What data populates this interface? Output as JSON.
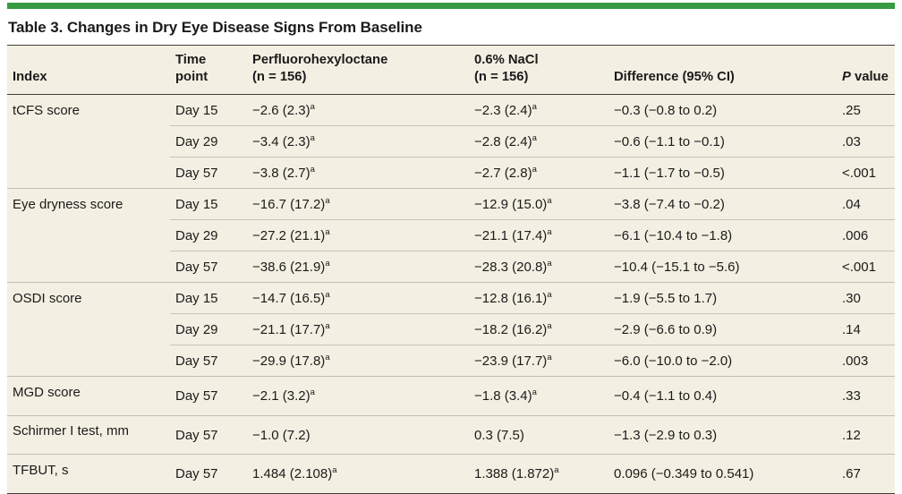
{
  "page": {
    "accent_color": "#379b41",
    "panel_background": "#f3efe2",
    "rule_dark": "#3d3d3d",
    "rule_light": "#c8c5b7",
    "text_color": "#1b1b1b"
  },
  "table": {
    "title": "Table 3. Changes in Dry Eye Disease Signs From Baseline",
    "header": {
      "index": "Index",
      "time_point": "Time\npoint",
      "drug": "Perfluorohexyloctane\n(n = 156)",
      "nacl": "0.6% NaCl\n(n = 156)",
      "difference": "Difference (95% CI)",
      "p_value_italic": "P",
      "p_value_rest": " value"
    },
    "footnote_marker": "a",
    "groups": [
      {
        "index": "tCFS score",
        "rows": [
          {
            "time": "Day 15",
            "drug": {
              "text": "−2.6 (2.3)",
              "sup": "a"
            },
            "nacl": {
              "text": "−2.3 (2.4)",
              "sup": "a"
            },
            "difference": "−0.3 (−0.8 to 0.2)",
            "p": ".25"
          },
          {
            "time": "Day 29",
            "drug": {
              "text": "−3.4 (2.3)",
              "sup": "a"
            },
            "nacl": {
              "text": "−2.8 (2.4)",
              "sup": "a"
            },
            "difference": "−0.6 (−1.1 to −0.1)",
            "p": ".03"
          },
          {
            "time": "Day 57",
            "drug": {
              "text": "−3.8 (2.7)",
              "sup": "a"
            },
            "nacl": {
              "text": "−2.7 (2.8)",
              "sup": "a"
            },
            "difference": "−1.1 (−1.7 to −0.5)",
            "p": "<.001"
          }
        ]
      },
      {
        "index": "Eye dryness score",
        "rows": [
          {
            "time": "Day 15",
            "drug": {
              "text": "−16.7 (17.2)",
              "sup": "a"
            },
            "nacl": {
              "text": "−12.9 (15.0)",
              "sup": "a"
            },
            "difference": "−3.8 (−7.4 to −0.2)",
            "p": ".04"
          },
          {
            "time": "Day 29",
            "drug": {
              "text": "−27.2 (21.1)",
              "sup": "a"
            },
            "nacl": {
              "text": "−21.1 (17.4)",
              "sup": "a"
            },
            "difference": "−6.1 (−10.4 to −1.8)",
            "p": ".006"
          },
          {
            "time": "Day 57",
            "drug": {
              "text": "−38.6 (21.9)",
              "sup": "a"
            },
            "nacl": {
              "text": "−28.3 (20.8)",
              "sup": "a"
            },
            "difference": "−10.4 (−15.1 to −5.6)",
            "p": "<.001"
          }
        ]
      },
      {
        "index": "OSDI score",
        "rows": [
          {
            "time": "Day 15",
            "drug": {
              "text": "−14.7 (16.5)",
              "sup": "a"
            },
            "nacl": {
              "text": "−12.8 (16.1)",
              "sup": "a"
            },
            "difference": "−1.9 (−5.5 to 1.7)",
            "p": ".30"
          },
          {
            "time": "Day 29",
            "drug": {
              "text": "−21.1 (17.7)",
              "sup": "a"
            },
            "nacl": {
              "text": "−18.2 (16.2)",
              "sup": "a"
            },
            "difference": "−2.9 (−6.6 to 0.9)",
            "p": ".14"
          },
          {
            "time": "Day 57",
            "drug": {
              "text": "−29.9 (17.8)",
              "sup": "a"
            },
            "nacl": {
              "text": "−23.9 (17.7)",
              "sup": "a"
            },
            "difference": "−6.0 (−10.0 to −2.0)",
            "p": ".003"
          }
        ]
      },
      {
        "index": "MGD score",
        "rows": [
          {
            "time": "Day 57",
            "drug": {
              "text": "−2.1 (3.2)",
              "sup": "a"
            },
            "nacl": {
              "text": "−1.8 (3.4)",
              "sup": "a"
            },
            "difference": "−0.4 (−1.1 to 0.4)",
            "p": ".33"
          }
        ]
      },
      {
        "index": "Schirmer I test, mm",
        "rows": [
          {
            "time": "Day 57",
            "drug": {
              "text": "−1.0 (7.2)"
            },
            "nacl": {
              "text": "0.3 (7.5)"
            },
            "difference": "−1.3 (−2.9 to 0.3)",
            "p": ".12"
          }
        ]
      },
      {
        "index": "TFBUT, s",
        "rows": [
          {
            "time": "Day 57",
            "drug": {
              "text": "1.484 (2.108)",
              "sup": "a"
            },
            "nacl": {
              "text": "1.388 (1.872)",
              "sup": "a"
            },
            "difference": "0.096 (−0.349 to 0.541)",
            "p": ".67"
          }
        ]
      }
    ]
  }
}
